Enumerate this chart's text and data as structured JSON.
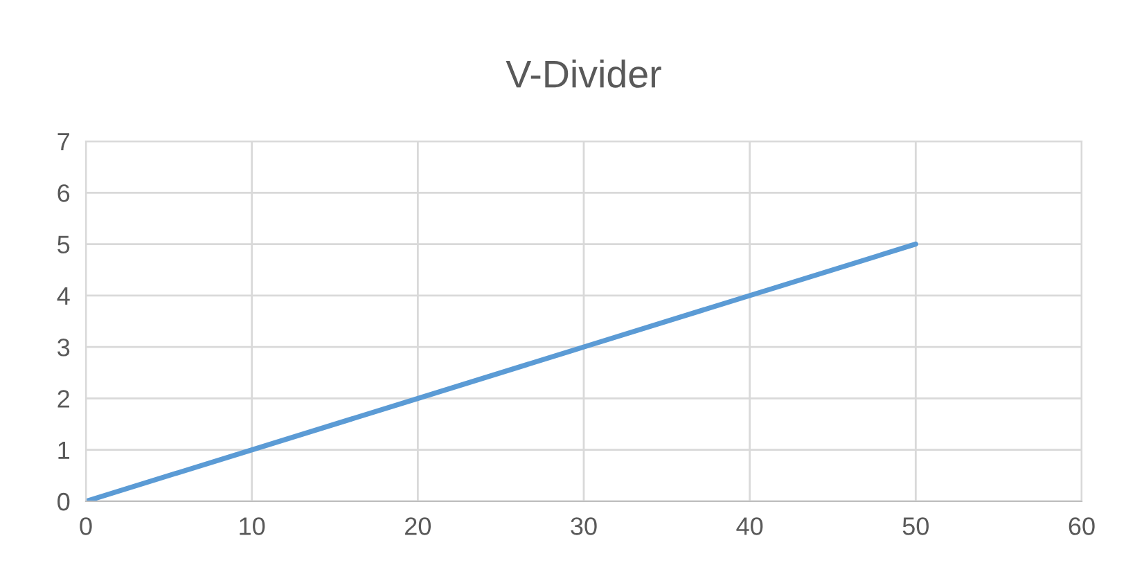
{
  "chart_data": {
    "type": "line",
    "title": "V-Divider",
    "series": [
      {
        "color": "#5b9bd5",
        "x": [
          0,
          10,
          20,
          30,
          40,
          50
        ],
        "values": [
          0,
          1,
          2,
          3,
          4,
          5
        ]
      }
    ],
    "xlim": [
      0,
      60
    ],
    "xticks": [
      0,
      10,
      20,
      30,
      40,
      50,
      60
    ],
    "ylim": [
      0,
      7
    ],
    "yticks": [
      0,
      1,
      2,
      3,
      4,
      5,
      6,
      7
    ],
    "grid": true,
    "marker": "none",
    "line_style": "solid"
  }
}
